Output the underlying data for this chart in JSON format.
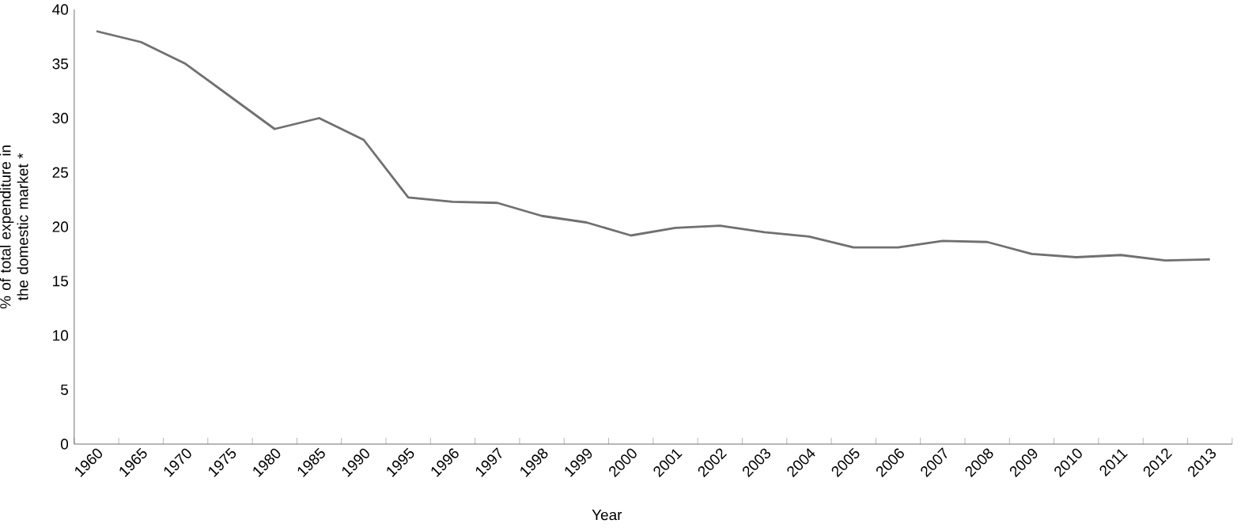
{
  "chart_data": {
    "type": "line",
    "xlabel": "Year",
    "ylabel": "% of total  expenditure in the domestic market *",
    "categories": [
      "1960",
      "1965",
      "1970",
      "1975",
      "1980",
      "1985",
      "1990",
      "1995",
      "1996",
      "1997",
      "1998",
      "1999",
      "2000",
      "2001",
      "2002",
      "2003",
      "2004",
      "2005",
      "2006",
      "2007",
      "2008",
      "2009",
      "2010",
      "2011",
      "2012",
      "2013"
    ],
    "values": [
      38,
      37,
      35,
      32,
      29,
      30,
      28,
      22.7,
      22.3,
      22.2,
      21,
      20.4,
      19.2,
      19.9,
      20.1,
      19.5,
      19.1,
      18.1,
      18.1,
      18.7,
      18.6,
      17.5,
      17.2,
      17.4,
      16.9,
      17.0
    ],
    "color": "#707070",
    "ylim": [
      0,
      40
    ],
    "yticks": [
      0,
      5,
      10,
      15,
      20,
      25,
      30,
      35,
      40
    ],
    "marker": "none",
    "line_style": "solid"
  }
}
